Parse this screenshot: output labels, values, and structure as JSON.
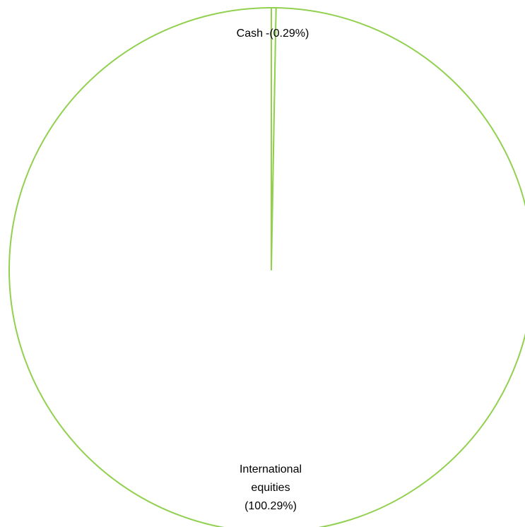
{
  "chart_data": {
    "type": "pie",
    "categories": [
      "Cash",
      "International equities"
    ],
    "values": [
      -0.29,
      100.29
    ],
    "value_labels": [
      "-(0.29%)",
      "(100.29%)"
    ],
    "color": "#92d050"
  }
}
